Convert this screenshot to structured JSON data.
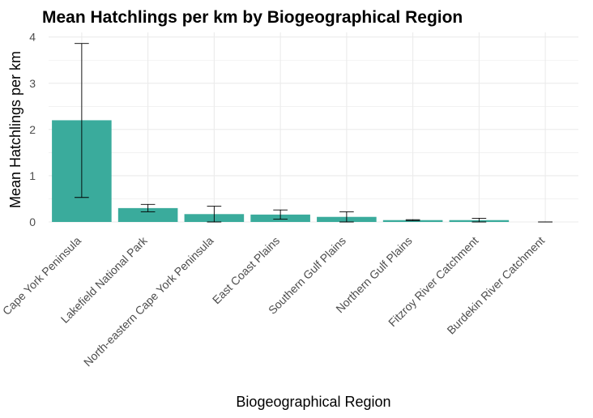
{
  "chart_data": {
    "type": "bar",
    "title": "Mean Hatchlings per km by Biogeographical Region",
    "xlabel": "Biogeographical Region",
    "ylabel": "Mean Hatchlings per km",
    "categories": [
      "Cape York Peninsula",
      "Lakefield National Park",
      "North-eastern Cape York Peninsula",
      "East Coast Plains",
      "Southern Gulf Plains",
      "Northern Gulf Plains",
      "Fitzroy River Catchment",
      "Burdekin River Catchment"
    ],
    "values": [
      2.2,
      0.3,
      0.17,
      0.16,
      0.11,
      0.04,
      0.04,
      0.0
    ],
    "error_low": [
      0.53,
      0.22,
      0.0,
      0.06,
      0.0,
      0.03,
      0.0,
      0.0
    ],
    "error_high": [
      3.86,
      0.38,
      0.34,
      0.26,
      0.22,
      0.05,
      0.08,
      0.0
    ],
    "ylim": [
      0,
      4.1
    ],
    "yticks": [
      "0",
      "1",
      "2",
      "3",
      "4"
    ],
    "grid": true,
    "bar_color": "#3aab9c",
    "grid_color": "#ebebeb"
  }
}
